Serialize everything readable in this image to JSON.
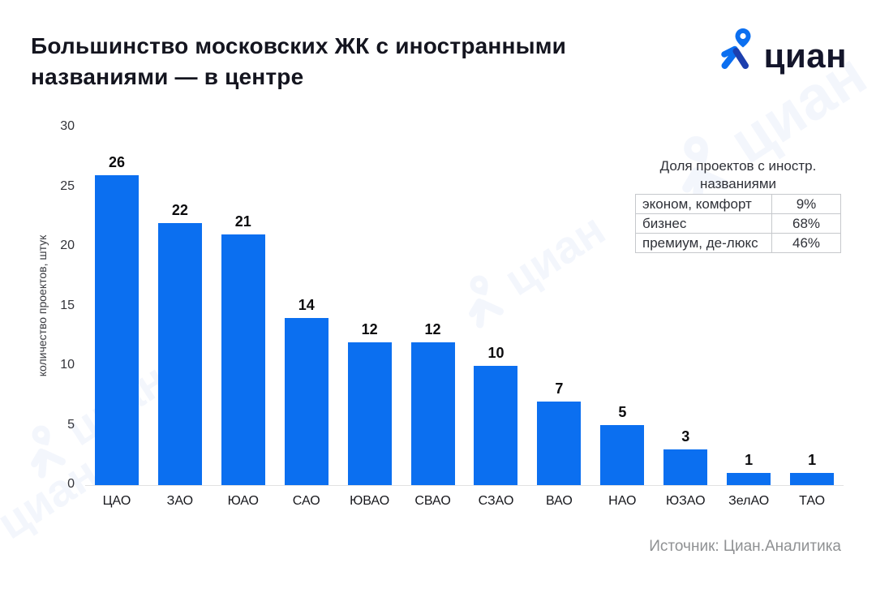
{
  "header": {
    "title": "Большинство московских ЖК с иностранными названиями — в центре",
    "logo_text": "циан"
  },
  "chart_data": {
    "type": "bar",
    "title": "Большинство московских ЖК с иностранными названиями — в центре",
    "categories": [
      "ЦАО",
      "ЗАО",
      "ЮАО",
      "САО",
      "ЮВАО",
      "СВАО",
      "СЗАО",
      "ВАО",
      "НАО",
      "ЮЗАО",
      "ЗелАО",
      "ТАО"
    ],
    "values": [
      26,
      22,
      21,
      14,
      12,
      12,
      10,
      7,
      5,
      3,
      1,
      1
    ],
    "xlabel": "",
    "ylabel": "количество проектов, штук",
    "ylim": [
      0,
      30
    ],
    "yticks": [
      0,
      5,
      10,
      15,
      20,
      25,
      30
    ],
    "grid": false,
    "legend": false,
    "value_labels": true,
    "bar_color": "#0b6ff0"
  },
  "side_table": {
    "title": "Доля проектов с иностр. названиями",
    "rows": [
      {
        "label": "эконом, комфорт",
        "value": "9%"
      },
      {
        "label": "бизнес",
        "value": "68%"
      },
      {
        "label": "премиум, де-люкс",
        "value": "46%"
      }
    ]
  },
  "footer": {
    "source": "Источник: Циан.Аналитика"
  },
  "branding": {
    "watermark_text": "циан",
    "logo_icon": "cian-person-pin-icon",
    "brand_blue": "#0b6ff0",
    "brand_navy": "#14162b"
  }
}
